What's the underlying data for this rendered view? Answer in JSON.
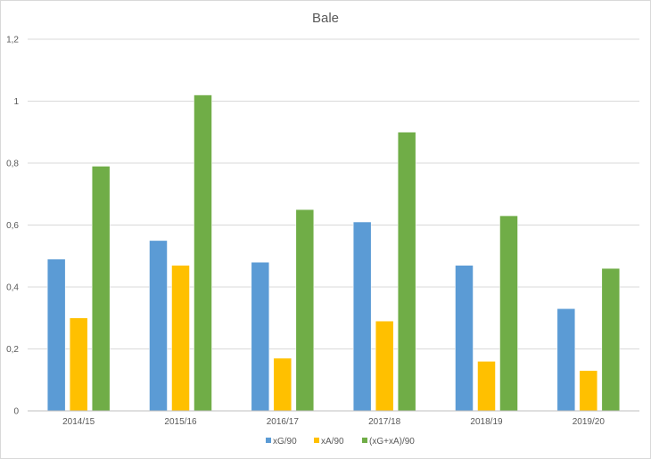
{
  "chart_data": {
    "type": "bar",
    "title": "Bale",
    "categories": [
      "2014/15",
      "2015/16",
      "2016/17",
      "2017/18",
      "2018/19",
      "2019/20"
    ],
    "series": [
      {
        "name": "xG/90",
        "color": "#5b9bd5",
        "values": [
          0.49,
          0.55,
          0.48,
          0.61,
          0.47,
          0.33
        ]
      },
      {
        "name": "xA/90",
        "color": "#ffc000",
        "values": [
          0.3,
          0.47,
          0.17,
          0.29,
          0.16,
          0.13
        ]
      },
      {
        "name": "(xG+xA)/90",
        "color": "#70ad47",
        "values": [
          0.79,
          1.02,
          0.65,
          0.9,
          0.63,
          0.46
        ]
      }
    ],
    "ylim": [
      0,
      1.2
    ],
    "yticks": [
      0,
      0.2,
      0.4,
      0.6,
      0.8,
      1,
      1.2
    ],
    "ytick_labels": [
      "0",
      "0,2",
      "0,4",
      "0,6",
      "0,8",
      "1",
      "1,2"
    ],
    "xlabel": "",
    "ylabel": "",
    "grid": true,
    "legend_position": "bottom"
  }
}
